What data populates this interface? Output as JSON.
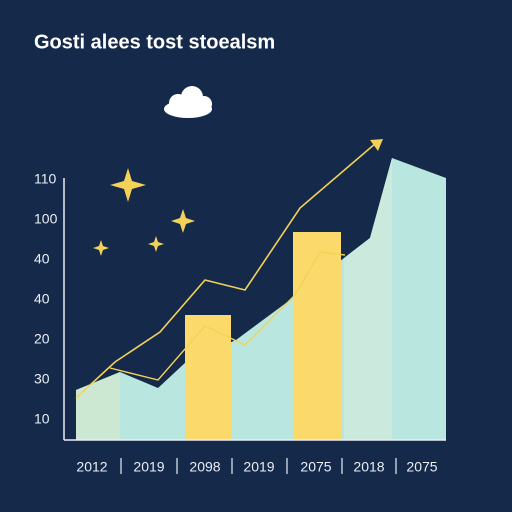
{
  "title": "Gosti alees tost stoealsm",
  "y_axis_labels": [
    "110",
    "100",
    "40",
    "40",
    "20",
    "30",
    "10"
  ],
  "x_axis_labels": [
    "2012",
    "2019",
    "2098",
    "2019",
    "2075",
    "2018",
    "2075"
  ]
}
